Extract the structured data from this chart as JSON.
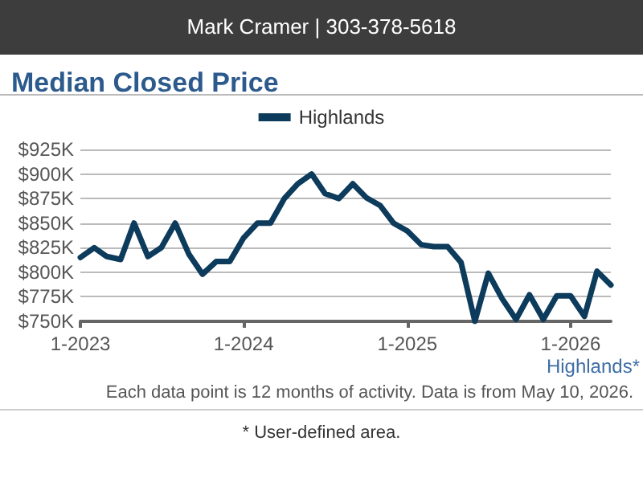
{
  "chart_data": {
    "type": "line",
    "title": "Median Closed Price",
    "x": [
      "2023-01",
      "2023-02",
      "2023-03",
      "2023-04",
      "2023-05",
      "2023-06",
      "2023-07",
      "2023-08",
      "2023-09",
      "2023-10",
      "2023-11",
      "2023-12",
      "2024-01",
      "2024-02",
      "2024-03",
      "2024-04",
      "2024-05",
      "2024-06",
      "2024-07",
      "2024-08",
      "2024-09",
      "2024-10",
      "2024-11",
      "2024-12",
      "2025-01",
      "2025-02",
      "2025-03",
      "2025-04",
      "2025-05",
      "2025-06",
      "2025-07",
      "2025-08",
      "2025-09",
      "2025-10",
      "2025-11",
      "2025-12",
      "2026-01",
      "2026-02",
      "2026-03",
      "2026-04"
    ],
    "series": [
      {
        "name": "Highlands",
        "color": "#0d3b5c",
        "values": [
          815,
          825,
          816,
          813,
          850,
          816,
          825,
          850,
          818,
          798,
          811,
          811,
          835,
          850,
          850,
          875,
          890,
          900,
          880,
          875,
          890,
          876,
          868,
          850,
          842,
          828,
          826,
          826,
          810,
          750,
          799,
          773,
          752,
          777,
          752,
          776,
          776,
          755,
          801,
          787
        ]
      }
    ],
    "xlim": [
      "2023-01",
      "2026-04"
    ],
    "xticks": [
      {
        "value": "2023-01",
        "label": "1-2023"
      },
      {
        "value": "2024-01",
        "label": "1-2024"
      },
      {
        "value": "2025-01",
        "label": "1-2025"
      },
      {
        "value": "2026-01",
        "label": "1-2026"
      }
    ],
    "ylim": [
      750,
      925
    ],
    "yticks": [
      {
        "value": 750,
        "label": "$750K"
      },
      {
        "value": 775,
        "label": "$775K"
      },
      {
        "value": 800,
        "label": "$800K"
      },
      {
        "value": 825,
        "label": "$825K"
      },
      {
        "value": 850,
        "label": "$850K"
      },
      {
        "value": 875,
        "label": "$875K"
      },
      {
        "value": 900,
        "label": "$900K"
      },
      {
        "value": 925,
        "label": "$925K"
      }
    ],
    "grid": "y",
    "legend": "top",
    "marker": "none",
    "line_style": "solid",
    "annotations": [
      "Mark Cramer | 303-378-5618",
      "Highlands*",
      "Each data point is 12 months of activity. Data is from May 10, 2026.",
      "* User-defined area."
    ]
  }
}
